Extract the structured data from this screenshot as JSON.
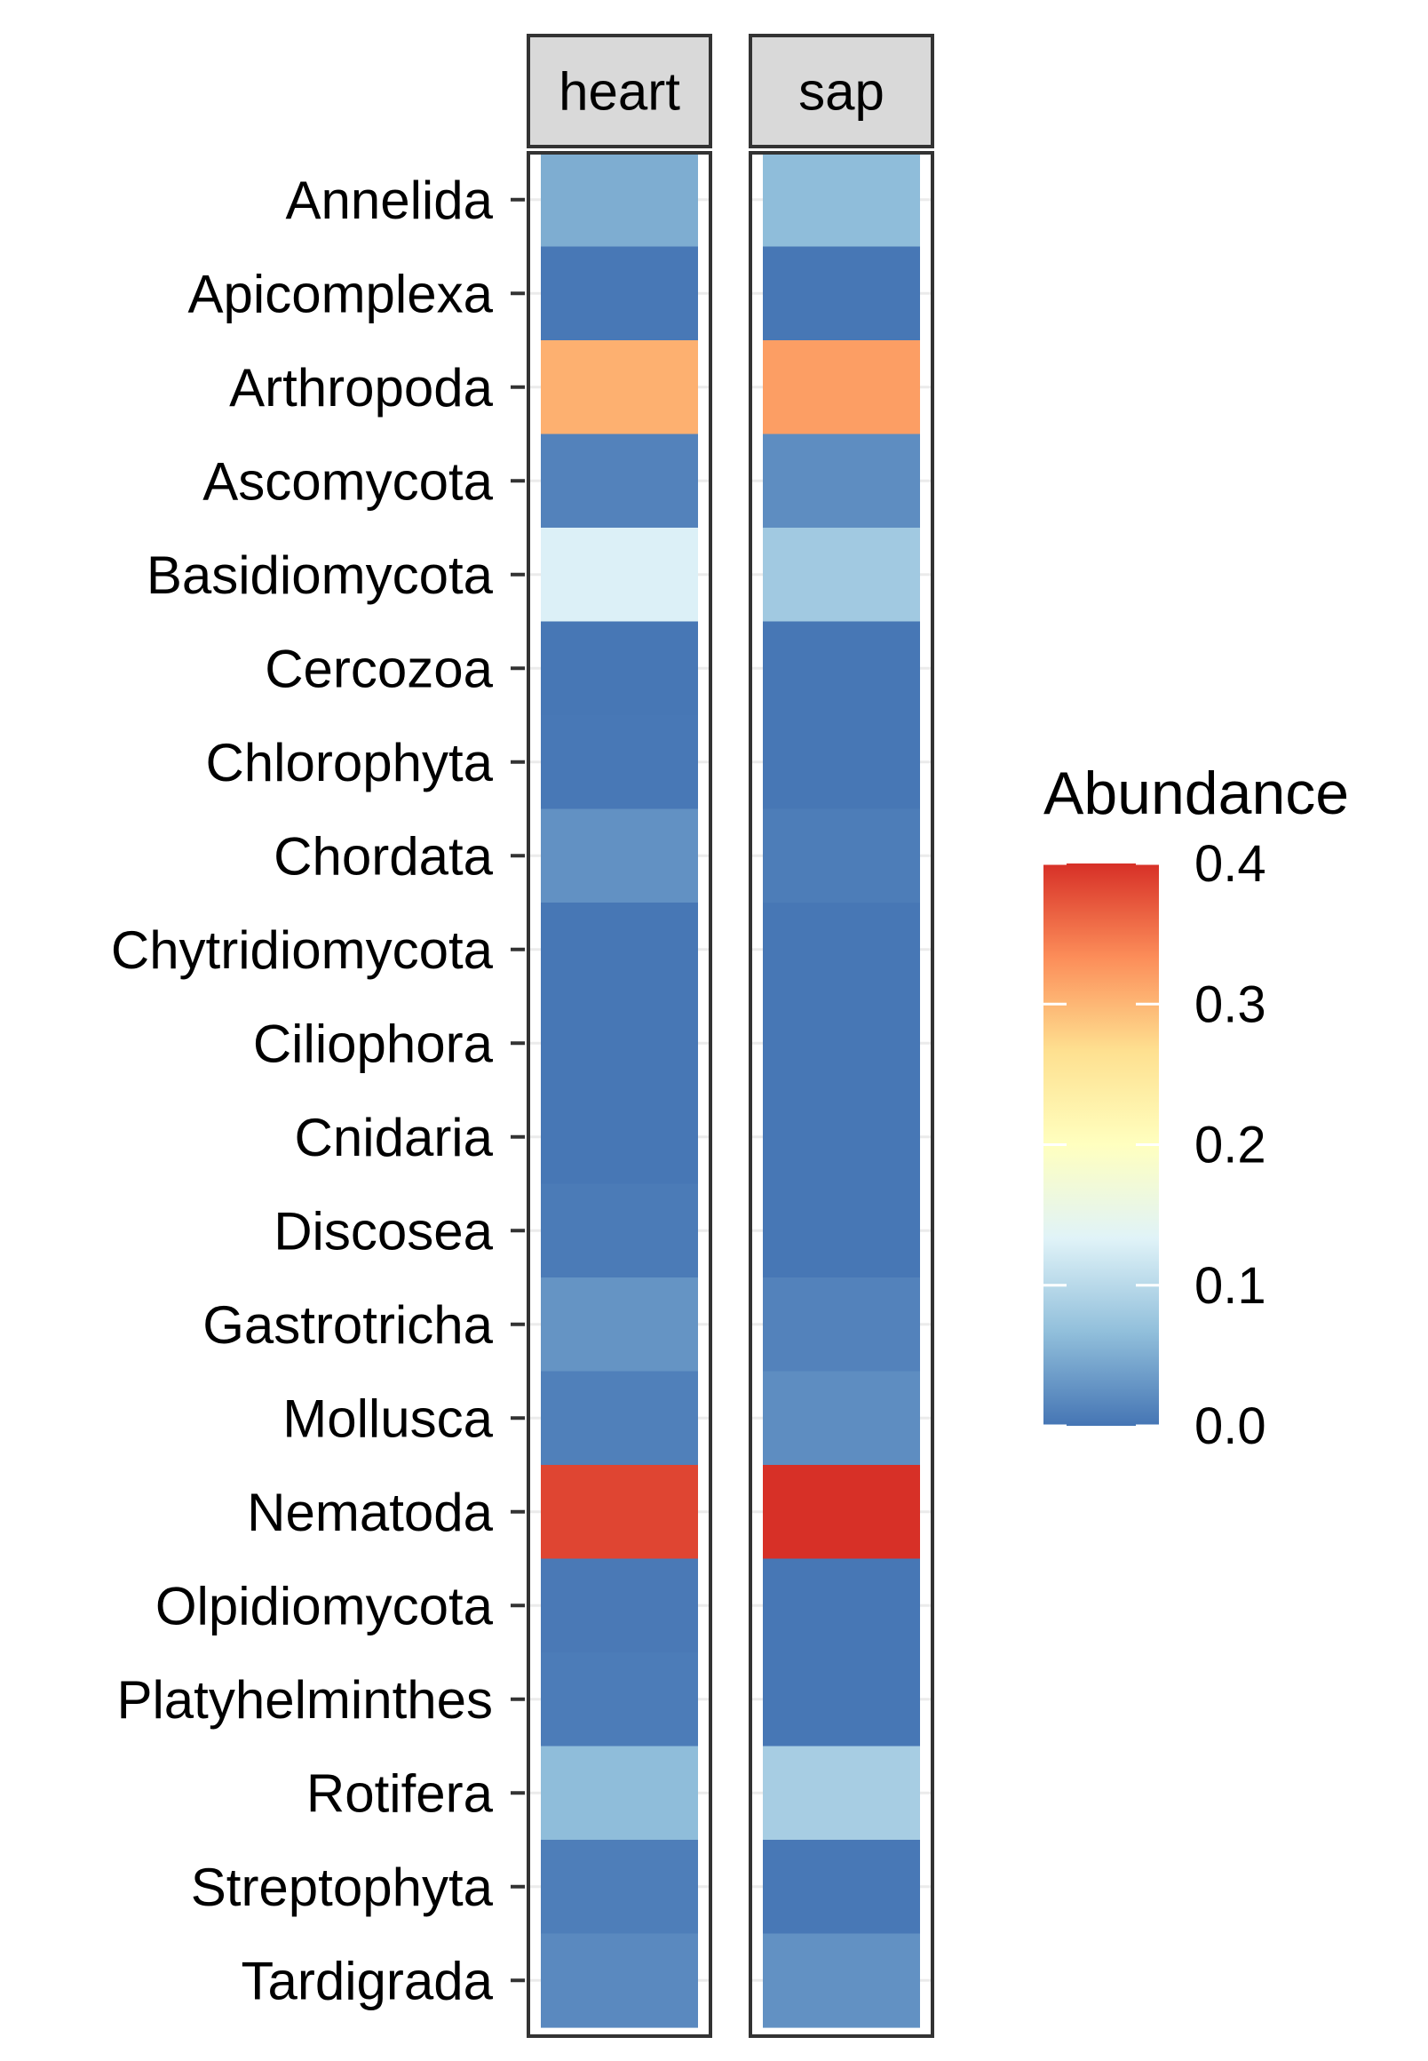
{
  "chart_data": {
    "type": "heatmap",
    "panels": [
      "heart",
      "sap"
    ],
    "rows": [
      "Annelida",
      "Apicomplexa",
      "Arthropoda",
      "Ascomycota",
      "Basidiomycota",
      "Cercozoa",
      "Chlorophyta",
      "Chordata",
      "Chytridiomycota",
      "Ciliophora",
      "Cnidaria",
      "Discosea",
      "Gastrotricha",
      "Mollusca",
      "Nematoda",
      "Olpidiomycota",
      "Platyhelminthes",
      "Rotifera",
      "Streptophyta",
      "Tardigrada"
    ],
    "series": [
      {
        "name": "heart",
        "values": [
          0.05,
          0.003,
          0.305,
          0.012,
          0.13,
          0.002,
          0.003,
          0.025,
          0.002,
          0.002,
          0.002,
          0.005,
          0.028,
          0.01,
          0.385,
          0.004,
          0.006,
          0.065,
          0.008,
          0.018
        ]
      },
      {
        "name": "sap",
        "values": [
          0.065,
          0.002,
          0.32,
          0.022,
          0.08,
          0.002,
          0.002,
          0.007,
          0.002,
          0.002,
          0.002,
          0.002,
          0.012,
          0.022,
          0.405,
          0.002,
          0.002,
          0.085,
          0.003,
          0.025
        ]
      }
    ],
    "legend": {
      "title": "Abundance",
      "ticks": [
        0.0,
        0.1,
        0.2,
        0.3,
        0.4
      ],
      "tick_labels": [
        "0.0",
        "0.1",
        "0.2",
        "0.3",
        "0.4"
      ],
      "range": [
        0.0,
        0.4
      ],
      "palette": [
        "#4575b4",
        "#91bfdb",
        "#e0f3f8",
        "#ffffbf",
        "#fee090",
        "#fc8d59",
        "#d73027"
      ],
      "placement": "right"
    },
    "title": "",
    "xlabel": "",
    "ylabel": ""
  },
  "colors": {
    "strip_fill": "#d9d9d9",
    "panel_border": "#333333",
    "grid": "#ebebeb"
  }
}
